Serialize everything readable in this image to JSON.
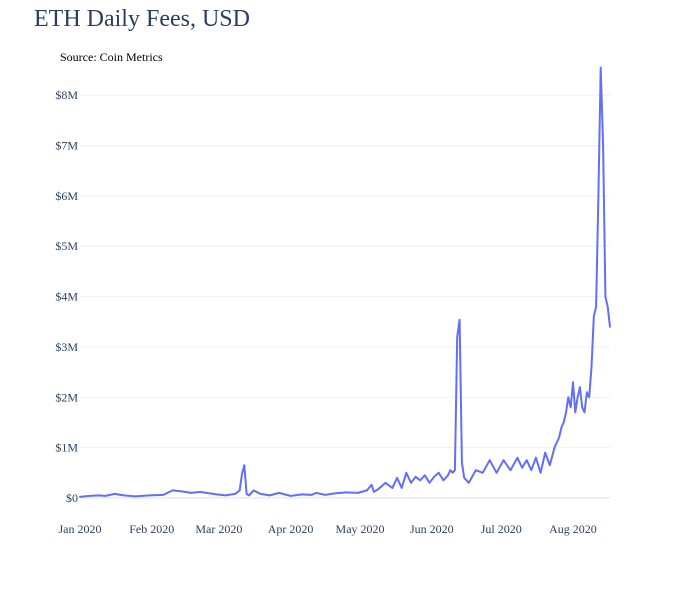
{
  "chart_data": {
    "type": "line",
    "title": "ETH Daily Fees, USD",
    "subtitle": "Source: Coin Metrics",
    "xlabel": "",
    "ylabel": "",
    "x_range": [
      "2020-01-01",
      "2020-08-17"
    ],
    "ylim": [
      -200000,
      8700000
    ],
    "y_ticks": [
      {
        "value": 0,
        "label": "$0"
      },
      {
        "value": 1000000,
        "label": "$1M"
      },
      {
        "value": 2000000,
        "label": "$2M"
      },
      {
        "value": 3000000,
        "label": "$3M"
      },
      {
        "value": 4000000,
        "label": "$4M"
      },
      {
        "value": 5000000,
        "label": "$5M"
      },
      {
        "value": 6000000,
        "label": "$6M"
      },
      {
        "value": 7000000,
        "label": "$7M"
      },
      {
        "value": 8000000,
        "label": "$8M"
      }
    ],
    "x_ticks": [
      {
        "value": "2020-01-01",
        "label": "Jan 2020"
      },
      {
        "value": "2020-02-01",
        "label": "Feb 2020"
      },
      {
        "value": "2020-03-01",
        "label": "Mar 2020"
      },
      {
        "value": "2020-04-01",
        "label": "Apr 2020"
      },
      {
        "value": "2020-05-01",
        "label": "May 2020"
      },
      {
        "value": "2020-06-01",
        "label": "Jun 2020"
      },
      {
        "value": "2020-07-01",
        "label": "Jul 2020"
      },
      {
        "value": "2020-08-01",
        "label": "Aug 2020"
      }
    ],
    "grid": true,
    "legend": false,
    "series_color": "#636efa",
    "grid_color": "#ebf0f8",
    "text_color": "#2a3f5f",
    "series": [
      {
        "x": [
          "2020-01-01",
          "2020-01-05",
          "2020-01-09",
          "2020-01-12",
          "2020-01-16",
          "2020-01-20",
          "2020-01-25",
          "2020-01-31",
          "2020-02-06",
          "2020-02-10",
          "2020-02-14",
          "2020-02-18",
          "2020-02-22",
          "2020-02-26",
          "2020-02-29",
          "2020-03-04",
          "2020-03-08",
          "2020-03-10",
          "2020-03-11",
          "2020-03-12",
          "2020-03-13",
          "2020-03-14",
          "2020-03-16",
          "2020-03-19",
          "2020-03-23",
          "2020-03-27",
          "2020-04-01",
          "2020-04-06",
          "2020-04-10",
          "2020-04-12",
          "2020-04-16",
          "2020-04-20",
          "2020-04-25",
          "2020-04-30",
          "2020-05-04",
          "2020-05-06",
          "2020-05-07",
          "2020-05-09",
          "2020-05-12",
          "2020-05-15",
          "2020-05-17",
          "2020-05-19",
          "2020-05-21",
          "2020-05-23",
          "2020-05-25",
          "2020-05-27",
          "2020-05-29",
          "2020-05-31",
          "2020-06-02",
          "2020-06-04",
          "2020-06-06",
          "2020-06-08",
          "2020-06-09",
          "2020-06-10",
          "2020-06-11",
          "2020-06-12",
          "2020-06-13",
          "2020-06-14",
          "2020-06-15",
          "2020-06-17",
          "2020-06-20",
          "2020-06-23",
          "2020-06-26",
          "2020-06-29",
          "2020-07-02",
          "2020-07-05",
          "2020-07-08",
          "2020-07-10",
          "2020-07-12",
          "2020-07-14",
          "2020-07-16",
          "2020-07-18",
          "2020-07-20",
          "2020-07-22",
          "2020-07-24",
          "2020-07-26",
          "2020-07-27",
          "2020-07-28",
          "2020-07-29",
          "2020-07-30",
          "2020-07-31",
          "2020-08-01",
          "2020-08-02",
          "2020-08-03",
          "2020-08-04",
          "2020-08-05",
          "2020-08-06",
          "2020-08-07",
          "2020-08-08",
          "2020-08-09",
          "2020-08-10",
          "2020-08-11",
          "2020-08-12",
          "2020-08-13",
          "2020-08-14",
          "2020-08-15",
          "2020-08-16",
          "2020-08-17"
        ],
        "values": [
          20000,
          40000,
          50000,
          40000,
          80000,
          50000,
          30000,
          50000,
          60000,
          150000,
          130000,
          100000,
          120000,
          90000,
          70000,
          50000,
          80000,
          150000,
          480000,
          650000,
          80000,
          50000,
          150000,
          80000,
          50000,
          100000,
          40000,
          70000,
          60000,
          100000,
          60000,
          90000,
          110000,
          100000,
          150000,
          260000,
          120000,
          180000,
          300000,
          200000,
          400000,
          200000,
          500000,
          300000,
          420000,
          350000,
          450000,
          300000,
          420000,
          500000,
          350000,
          450000,
          550000,
          500000,
          550000,
          3200000,
          3540000,
          700000,
          400000,
          300000,
          550000,
          500000,
          750000,
          500000,
          750000,
          550000,
          800000,
          600000,
          750000,
          550000,
          800000,
          500000,
          900000,
          650000,
          1000000,
          1200000,
          1400000,
          1500000,
          1700000,
          2000000,
          1800000,
          2300000,
          1700000,
          2000000,
          2200000,
          1800000,
          1700000,
          2100000,
          2000000,
          2600000,
          3600000,
          3800000,
          6000000,
          8550000,
          7000000,
          4000000,
          3800000,
          3400000
        ]
      }
    ]
  }
}
